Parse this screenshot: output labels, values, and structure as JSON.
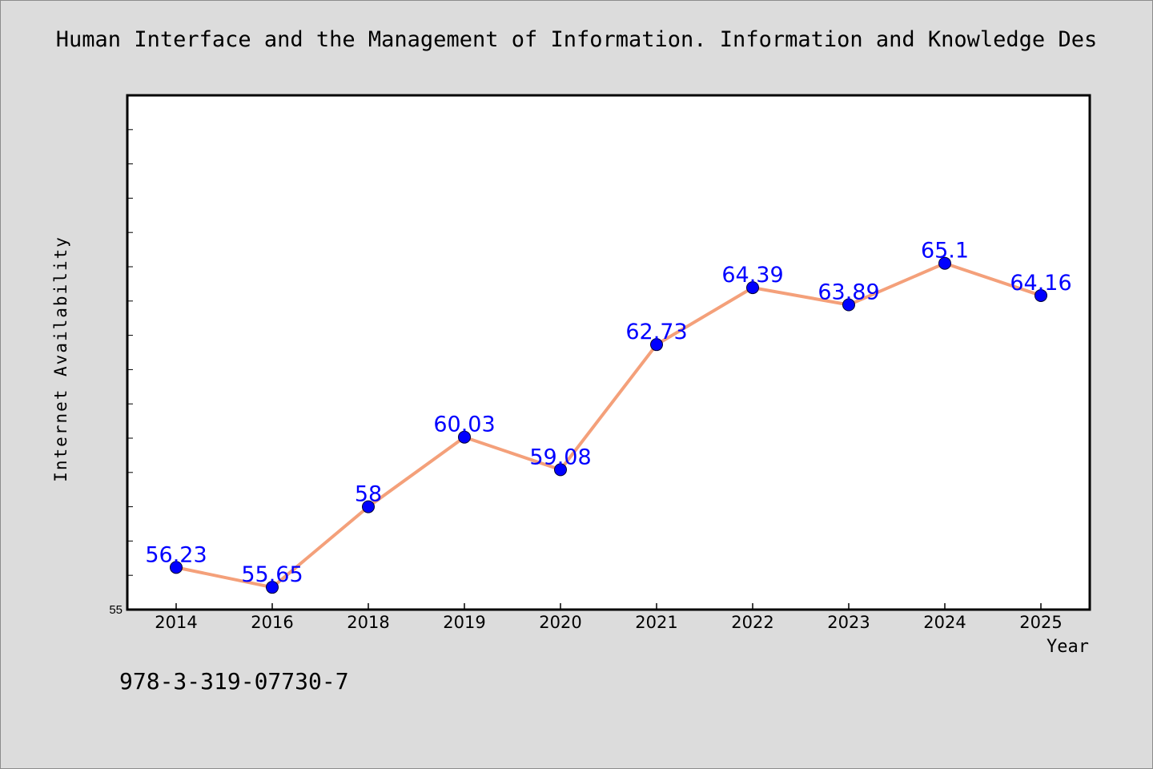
{
  "title": "Human Interface and the Management of Information. Information and Knowledge Des",
  "footnote": "978-3-319-07730-7",
  "colors": {
    "background": "#dcdcdc",
    "plot_background": "#ffffff",
    "line": "#f4a07a",
    "marker": "#0000ff",
    "label": "#0000ff"
  },
  "chart_data": {
    "type": "line",
    "title": "Human Interface and the Management of Information. Information and Knowledge Des",
    "xlabel": "Year",
    "ylabel": "Internet Availability",
    "categories": [
      "2014",
      "2016",
      "2018",
      "2019",
      "2020",
      "2021",
      "2022",
      "2023",
      "2024",
      "2025"
    ],
    "series": [
      {
        "values": [
          56.23,
          55.65,
          58,
          60.03,
          59.08,
          62.73,
          64.39,
          63.89,
          65.1,
          64.16
        ]
      }
    ],
    "data_labels": [
      "56.23",
      "55.65",
      "58",
      "60.03",
      "59.08",
      "62.73",
      "64.39",
      "63.89",
      "65.1",
      "64.16"
    ],
    "ylim": [
      55,
      70
    ],
    "yticks": [
      55
    ],
    "ytick_labels": [
      "55"
    ],
    "minor_tick_step": 1,
    "grid": false,
    "legend": "none"
  }
}
